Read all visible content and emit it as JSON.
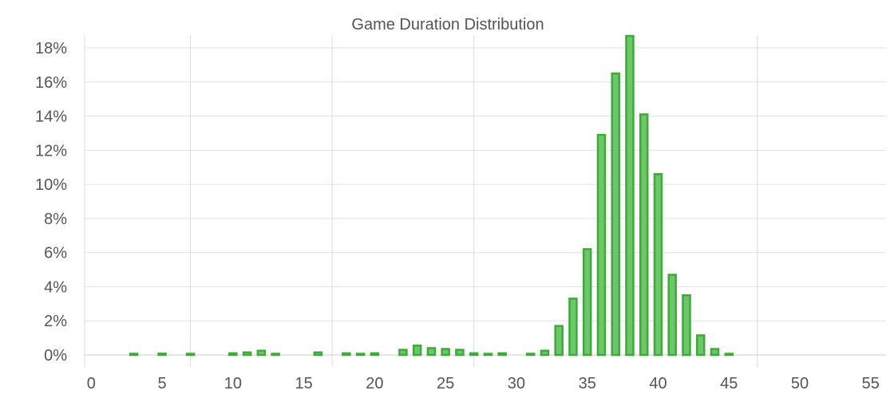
{
  "colors": {
    "bar_fill": "#6cc76a",
    "bar_stroke": "#3faa3a",
    "text": "#555555",
    "grid": "#e2e2e2"
  },
  "chart_data": {
    "type": "bar",
    "title": "Game Duration Distribution",
    "xlabel": "",
    "ylabel": "",
    "xlim": [
      0,
      57
    ],
    "ylim": [
      0,
      18.5
    ],
    "grid": true,
    "x_ticks": [
      0,
      5,
      10,
      15,
      20,
      25,
      30,
      35,
      40,
      45,
      50,
      55
    ],
    "y_ticks": [
      "0%",
      "2%",
      "4%",
      "6%",
      "8%",
      "10%",
      "12%",
      "14%",
      "16%",
      "18%"
    ],
    "x": [
      3,
      5,
      7,
      10,
      11,
      12,
      13,
      16,
      18,
      19,
      20,
      22,
      23,
      24,
      25,
      26,
      27,
      28,
      29,
      31,
      32,
      33,
      34,
      35,
      36,
      37,
      38,
      39,
      40,
      41,
      42,
      43,
      44,
      45
    ],
    "values": [
      0.05,
      0.08,
      0.05,
      0.1,
      0.15,
      0.25,
      0.05,
      0.15,
      0.1,
      0.05,
      0.1,
      0.3,
      0.55,
      0.4,
      0.35,
      0.3,
      0.1,
      0.05,
      0.1,
      0.05,
      0.25,
      1.7,
      3.3,
      6.2,
      12.9,
      16.5,
      18.7,
      14.1,
      10.6,
      4.7,
      3.5,
      1.15,
      0.35,
      0.05
    ]
  }
}
